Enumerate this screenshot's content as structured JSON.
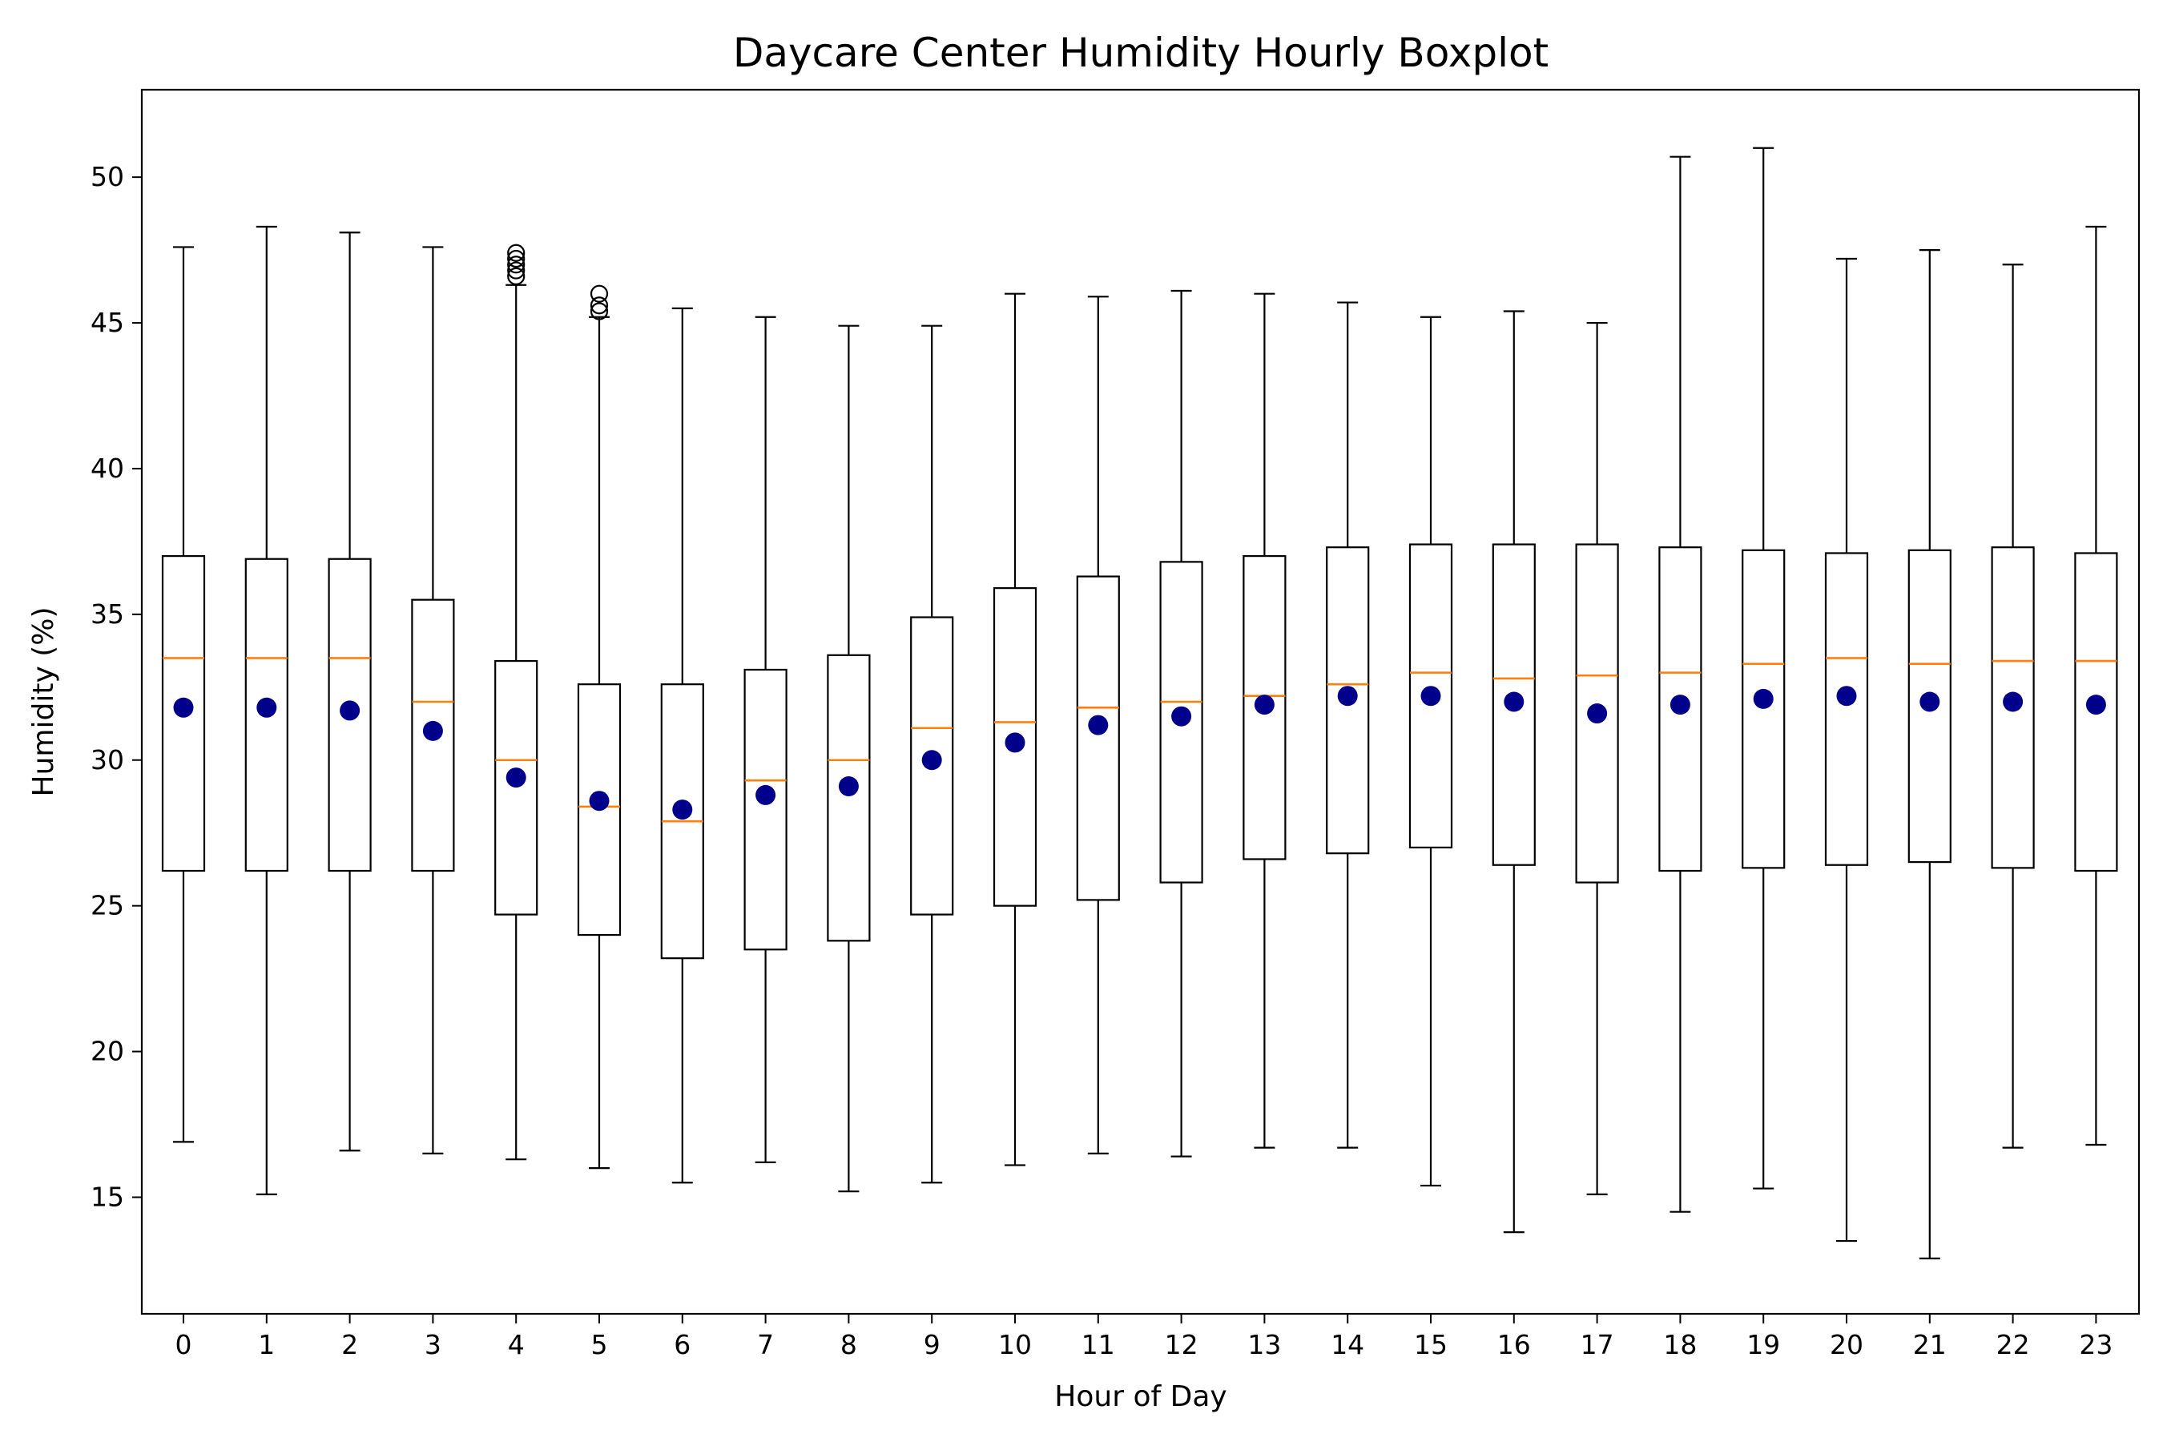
{
  "chart_data": {
    "type": "boxplot",
    "title": "Daycare Center Humidity Hourly Boxplot",
    "xlabel": "Hour of Day",
    "ylabel": "Humidity (%)",
    "ylim": [
      11,
      53
    ],
    "yticks": [
      15,
      20,
      25,
      30,
      35,
      40,
      45,
      50
    ],
    "categories": [
      "0",
      "1",
      "2",
      "3",
      "4",
      "5",
      "6",
      "7",
      "8",
      "9",
      "10",
      "11",
      "12",
      "13",
      "14",
      "15",
      "16",
      "17",
      "18",
      "19",
      "20",
      "21",
      "22",
      "23"
    ],
    "boxes": [
      {
        "whislo": 16.9,
        "q1": 26.2,
        "median": 33.5,
        "q3": 37.0,
        "whishi": 47.6,
        "mean": 31.8,
        "fliers": []
      },
      {
        "whislo": 15.1,
        "q1": 26.2,
        "median": 33.5,
        "q3": 36.9,
        "whishi": 48.3,
        "mean": 31.8,
        "fliers": []
      },
      {
        "whislo": 16.6,
        "q1": 26.2,
        "median": 33.5,
        "q3": 36.9,
        "whishi": 48.1,
        "mean": 31.7,
        "fliers": []
      },
      {
        "whislo": 16.5,
        "q1": 26.2,
        "median": 32.0,
        "q3": 35.5,
        "whishi": 47.6,
        "mean": 31.0,
        "fliers": []
      },
      {
        "whislo": 16.3,
        "q1": 24.7,
        "median": 30.0,
        "q3": 33.4,
        "whishi": 46.3,
        "mean": 29.4,
        "fliers": [
          46.6,
          46.8,
          47.0,
          47.2,
          47.4
        ]
      },
      {
        "whislo": 16.0,
        "q1": 24.0,
        "median": 28.4,
        "q3": 32.6,
        "whishi": 45.2,
        "mean": 28.6,
        "fliers": [
          45.4,
          45.6,
          46.0
        ]
      },
      {
        "whislo": 15.5,
        "q1": 23.2,
        "median": 27.9,
        "q3": 32.6,
        "whishi": 45.5,
        "mean": 28.3,
        "fliers": []
      },
      {
        "whislo": 16.2,
        "q1": 23.5,
        "median": 29.3,
        "q3": 33.1,
        "whishi": 45.2,
        "mean": 28.8,
        "fliers": []
      },
      {
        "whislo": 15.2,
        "q1": 23.8,
        "median": 30.0,
        "q3": 33.6,
        "whishi": 44.9,
        "mean": 29.1,
        "fliers": []
      },
      {
        "whislo": 15.5,
        "q1": 24.7,
        "median": 31.1,
        "q3": 34.9,
        "whishi": 44.9,
        "mean": 30.0,
        "fliers": []
      },
      {
        "whislo": 16.1,
        "q1": 25.0,
        "median": 31.3,
        "q3": 35.9,
        "whishi": 46.0,
        "mean": 30.6,
        "fliers": []
      },
      {
        "whislo": 16.5,
        "q1": 25.2,
        "median": 31.8,
        "q3": 36.3,
        "whishi": 45.9,
        "mean": 31.2,
        "fliers": []
      },
      {
        "whislo": 16.4,
        "q1": 25.8,
        "median": 32.0,
        "q3": 36.8,
        "whishi": 46.1,
        "mean": 31.5,
        "fliers": []
      },
      {
        "whislo": 16.7,
        "q1": 26.6,
        "median": 32.2,
        "q3": 37.0,
        "whishi": 46.0,
        "mean": 31.9,
        "fliers": []
      },
      {
        "whislo": 16.7,
        "q1": 26.8,
        "median": 32.6,
        "q3": 37.3,
        "whishi": 45.7,
        "mean": 32.2,
        "fliers": []
      },
      {
        "whislo": 15.4,
        "q1": 27.0,
        "median": 33.0,
        "q3": 37.4,
        "whishi": 45.2,
        "mean": 32.2,
        "fliers": []
      },
      {
        "whislo": 13.8,
        "q1": 26.4,
        "median": 32.8,
        "q3": 37.4,
        "whishi": 45.4,
        "mean": 32.0,
        "fliers": []
      },
      {
        "whislo": 15.1,
        "q1": 25.8,
        "median": 32.9,
        "q3": 37.4,
        "whishi": 45.0,
        "mean": 31.6,
        "fliers": []
      },
      {
        "whislo": 14.5,
        "q1": 26.2,
        "median": 33.0,
        "q3": 37.3,
        "whishi": 50.7,
        "mean": 31.9,
        "fliers": []
      },
      {
        "whislo": 15.3,
        "q1": 26.3,
        "median": 33.3,
        "q3": 37.2,
        "whishi": 51.0,
        "mean": 32.1,
        "fliers": []
      },
      {
        "whislo": 13.5,
        "q1": 26.4,
        "median": 33.5,
        "q3": 37.1,
        "whishi": 47.2,
        "mean": 32.2,
        "fliers": []
      },
      {
        "whislo": 12.9,
        "q1": 26.5,
        "median": 33.3,
        "q3": 37.2,
        "whishi": 47.5,
        "mean": 32.0,
        "fliers": []
      },
      {
        "whislo": 16.7,
        "q1": 26.3,
        "median": 33.4,
        "q3": 37.3,
        "whishi": 47.0,
        "mean": 32.0,
        "fliers": []
      },
      {
        "whislo": 16.8,
        "q1": 26.2,
        "median": 33.4,
        "q3": 37.1,
        "whishi": 48.3,
        "mean": 31.9,
        "fliers": []
      }
    ],
    "colors": {
      "box": "#000000",
      "median": "#ff7f0e",
      "mean": "#00008b"
    },
    "grid": false,
    "legend": "none"
  }
}
